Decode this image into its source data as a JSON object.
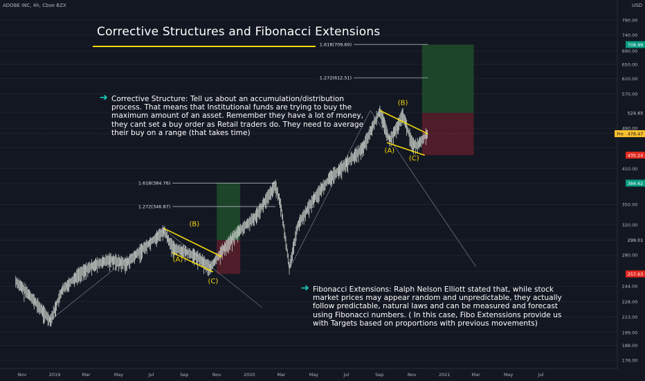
{
  "symbol_label": "ADOBE INC, 4h, Cboe BZX",
  "currency_label": "USD",
  "title": "Corrective Structures and Fibonacci Extensions",
  "notes": {
    "corrective": "Corrective Structure: Tell us about an accumulation/distribution process. That means that Institutional funds are trying to buy the maximum amount of an asset. Remember they have a lot of money, they cant set a buy order as Retail traders do. They need to average their buy on a range (that takes time)",
    "fibonacci": "Fibonacci Extensions: Ralph Nelson Elliott stated that, while stock market prices may appear random and unpredictable, they actually follow predictable, natural laws and can be measured and forecast using Fibonacci numbers. ( In this case, Fibo Extenssions provide us with Targets based on proportions with previous movements)"
  },
  "colors": {
    "background": "#131722",
    "candles": "#cfd6cf",
    "channel": "#f5d90a",
    "profit_zone": "#1f4d2b",
    "loss_zone": "#5a1f2a",
    "grid_line": "#2a2e39",
    "axis_text": "#b2b5be",
    "badge_green": "#089981",
    "badge_red": "#e0281e",
    "badge_price": "#fbc02d",
    "arrow": "#19d5c4"
  },
  "chart_data": {
    "type": "candlestick",
    "log_scale": true,
    "y_ticks": [
      176,
      188,
      199,
      213,
      228,
      244,
      261,
      280,
      299,
      320,
      350,
      384.62,
      410,
      450,
      490,
      524.65,
      570,
      610,
      650,
      690,
      740,
      790
    ],
    "y_tick_labels": [
      "176.00",
      "188.00",
      "199.00",
      "213.00",
      "228.00",
      "244.00",
      "",
      "280.00",
      "",
      "320.00",
      "350.00",
      "",
      "410.00",
      "",
      "490.00",
      "",
      "570.00",
      "610.00",
      "650.00",
      "690.00",
      "740.00",
      "790.00"
    ],
    "x_labels": [
      "Nov",
      "2019",
      "Mar",
      "May",
      "Jul",
      "Sep",
      "Nov",
      "2020",
      "Mar",
      "May",
      "Jul",
      "Sep",
      "Nov",
      "2021",
      "Mar",
      "May",
      "Jul"
    ],
    "x_dates": [
      "2018-11-01",
      "2019-01-01",
      "2019-03-01",
      "2019-05-01",
      "2019-07-01",
      "2019-09-01",
      "2019-11-01",
      "2020-01-01",
      "2020-03-01",
      "2020-05-01",
      "2020-07-01",
      "2020-09-01",
      "2020-11-01",
      "2021-01-01",
      "2021-03-01",
      "2021-05-01",
      "2021-07-01"
    ],
    "price_path": [
      [
        "2018-10-20",
        250
      ],
      [
        "2018-11-15",
        235
      ],
      [
        "2018-12-24",
        210
      ],
      [
        "2019-01-15",
        240
      ],
      [
        "2019-02-15",
        258
      ],
      [
        "2019-03-15",
        268
      ],
      [
        "2019-04-15",
        275
      ],
      [
        "2019-05-15",
        270
      ],
      [
        "2019-06-10",
        285
      ],
      [
        "2019-07-25",
        312
      ],
      [
        "2019-08-10",
        290
      ],
      [
        "2019-09-01",
        285
      ],
      [
        "2019-09-25",
        278
      ],
      [
        "2019-10-20",
        265
      ],
      [
        "2019-11-10",
        285
      ],
      [
        "2019-12-10",
        310
      ],
      [
        "2020-01-10",
        330
      ],
      [
        "2020-02-19",
        382
      ],
      [
        "2020-03-01",
        345
      ],
      [
        "2020-03-16",
        265
      ],
      [
        "2020-04-01",
        320
      ],
      [
        "2020-05-01",
        360
      ],
      [
        "2020-06-01",
        395
      ],
      [
        "2020-07-01",
        420
      ],
      [
        "2020-08-01",
        450
      ],
      [
        "2020-09-02",
        530
      ],
      [
        "2020-09-20",
        465
      ],
      [
        "2020-10-05",
        495
      ],
      [
        "2020-10-15",
        522
      ],
      [
        "2020-11-01",
        460
      ],
      [
        "2020-11-10",
        455
      ],
      [
        "2020-11-30",
        478.47
      ]
    ],
    "price_levels": {
      "current": 478.47,
      "label_478_71": 478.71,
      "stop_1": 257.63,
      "stop_2": 435.24,
      "target_1": 384.62,
      "target_2": 708.99,
      "entry_2": 524.65,
      "level_299": 299.01
    },
    "badges": [
      {
        "text": "708.99",
        "value": 708.99,
        "kind": "green"
      },
      {
        "text": "524.65",
        "value": 524.65,
        "kind": "plain"
      },
      {
        "text": "478.71",
        "value": 478.71,
        "kind": "plain"
      },
      {
        "text": "478.47",
        "value": 478.47,
        "kind": "price",
        "prefix": "Pre"
      },
      {
        "text": "435.24",
        "value": 435.24,
        "kind": "red"
      },
      {
        "text": "384.62",
        "value": 384.62,
        "kind": "green"
      },
      {
        "text": "299.01",
        "value": 299.01,
        "kind": "plain"
      },
      {
        "text": "257.63",
        "value": 257.63,
        "kind": "red"
      }
    ],
    "fib_levels": [
      {
        "label": "1.618(384.76)",
        "value": 384.76,
        "from": "2019-08-10",
        "to": "2020-02-19"
      },
      {
        "label": "1.272(346.87)",
        "value": 346.87,
        "from": "2019-08-10",
        "to": "2020-02-19"
      },
      {
        "label": "1.618(709.60)",
        "value": 709.6,
        "from": "2020-07-15",
        "to": "2020-12-01"
      },
      {
        "label": "1.272(612.51)",
        "value": 612.51,
        "from": "2020-07-15",
        "to": "2020-12-01"
      }
    ],
    "positions": [
      {
        "start": "2019-11-01",
        "end": "2019-12-15",
        "entry": 299.01,
        "target": 384.62,
        "stop": 257.63
      },
      {
        "start": "2020-11-20",
        "end": "2021-02-25",
        "entry": 524.65,
        "target": 708.99,
        "stop": 435.24
      }
    ],
    "channels": [
      {
        "upper": [
          [
            "2019-07-25",
            315
          ],
          [
            "2019-11-10",
            278
          ]
        ],
        "lower": [
          [
            "2019-08-10",
            283
          ],
          [
            "2019-10-25",
            260
          ]
        ]
      },
      {
        "upper": [
          [
            "2020-09-02",
            530
          ],
          [
            "2020-12-01",
            478
          ]
        ],
        "lower": [
          [
            "2020-09-15",
            460
          ],
          [
            "2020-11-25",
            435
          ]
        ]
      }
    ],
    "wave_labels": [
      {
        "text": "(A)",
        "date": "2019-08-20",
        "value": 272
      },
      {
        "text": "(B)",
        "date": "2019-09-20",
        "value": 318
      },
      {
        "text": "(C)",
        "date": "2019-10-25",
        "value": 247
      },
      {
        "text": "(A)",
        "date": "2020-09-20",
        "value": 440
      },
      {
        "text": "(B)",
        "date": "2020-10-15",
        "value": 543
      },
      {
        "text": "(C)",
        "date": "2020-11-05",
        "value": 425
      }
    ],
    "projection_lines": [
      [
        [
          "2018-12-24",
          210
        ],
        [
          "2019-07-25",
          314
        ]
      ],
      [
        [
          "2019-07-25",
          314
        ],
        [
          "2020-01-25",
          222
        ]
      ],
      [
        [
          "2020-03-16",
          263
        ],
        [
          "2020-08-15",
          530
        ]
      ],
      [
        [
          "2020-08-15",
          530
        ],
        [
          "2021-03-01",
          266
        ]
      ]
    ]
  }
}
